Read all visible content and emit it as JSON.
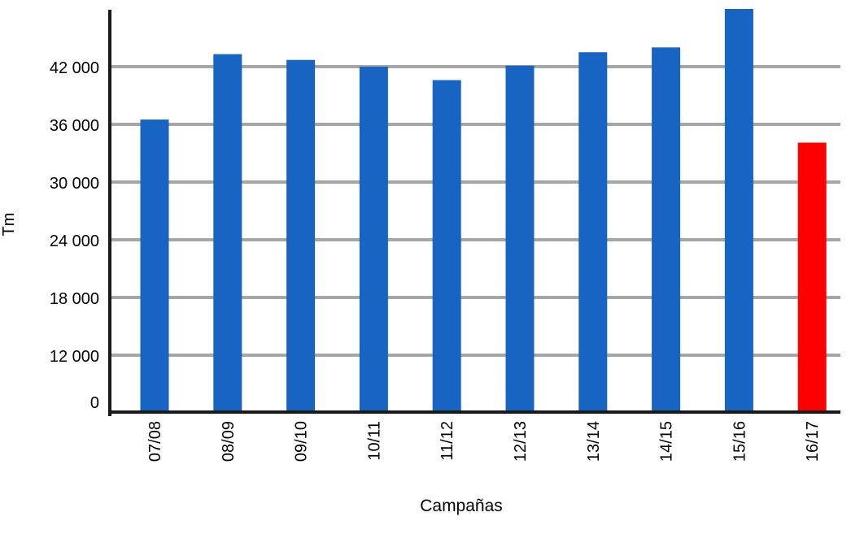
{
  "chart_data": {
    "type": "bar",
    "title": "",
    "xlabel": "Campañas",
    "ylabel": "Tm",
    "categories": [
      "07/08",
      "08/09",
      "09/10",
      "10/11",
      "11/12",
      "12/13",
      "13/14",
      "14/15",
      "15/16",
      "16/17"
    ],
    "values": [
      36500,
      43300,
      42700,
      42000,
      40600,
      42100,
      43500,
      44000,
      48000,
      34100
    ],
    "bar_colors": [
      "#1764C2",
      "#1764C2",
      "#1764C2",
      "#1764C2",
      "#1764C2",
      "#1764C2",
      "#1764C2",
      "#1764C2",
      "#1764C2",
      "#FF0000"
    ],
    "y_ticks": [
      0,
      12000,
      18000,
      24000,
      30000,
      36000,
      42000
    ],
    "y_tick_labels": [
      "0",
      "12 000",
      "18 000",
      "24 000",
      "30 000",
      "36 000",
      "42 000"
    ],
    "ylim": [
      0,
      50000
    ],
    "grid": true,
    "legend": false,
    "colors": {
      "bar": "#1764C2",
      "highlight_bar": "#FF0000",
      "gridline": "#A6A6A6",
      "axis": "#1a1a1a"
    }
  }
}
